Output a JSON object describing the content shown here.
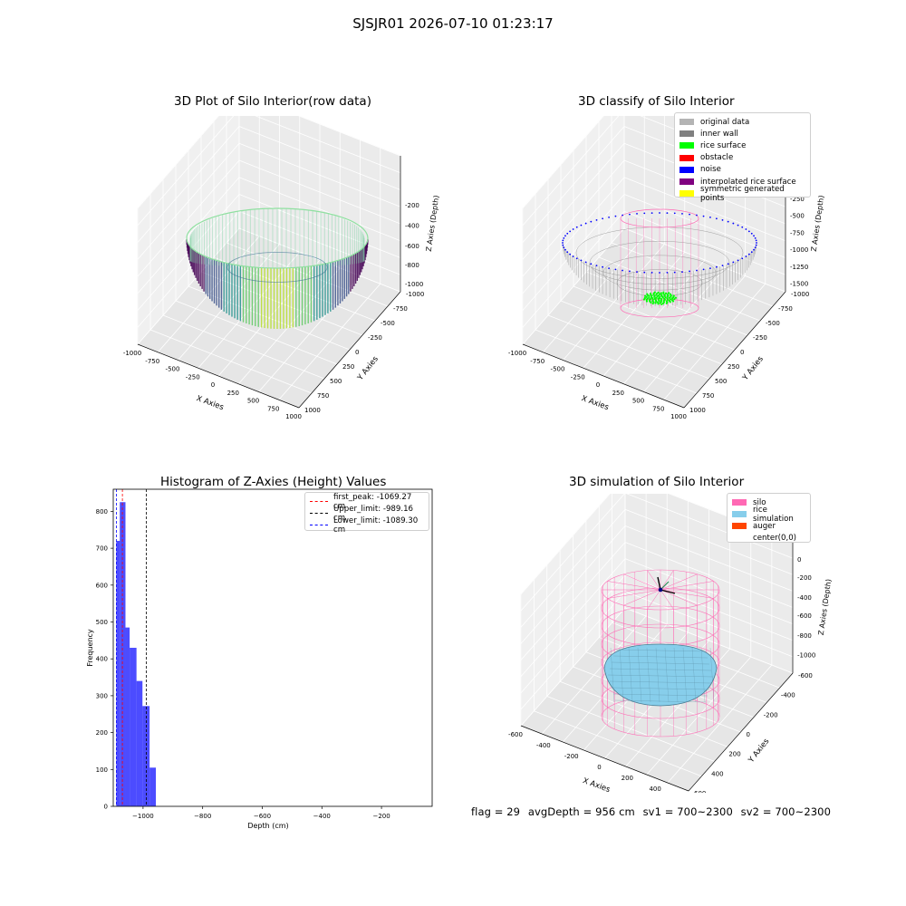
{
  "suptitle": "SJSJR01 2026-07-10 01:23:17",
  "panels": {
    "raw": {
      "title": "3D Plot of Silo Interior(row data)",
      "xlabel": "X Axies",
      "ylabel": "Y Axies",
      "zlabel": "Z Axies (Depth)",
      "xticks": [
        "-1000",
        "-750",
        "-500",
        "-250",
        "0",
        "250",
        "500",
        "750",
        "1000"
      ],
      "yticks": [
        "-1000",
        "-750",
        "-500",
        "-250",
        "0",
        "250",
        "500",
        "750",
        "1000"
      ],
      "zticks": [
        "-200",
        "-400",
        "-600",
        "-800",
        "-1000"
      ]
    },
    "classify": {
      "title": "3D classify of Silo Interior",
      "xlabel": "X Axies",
      "ylabel": "Y Axies",
      "zlabel": "Z Axies (Depth)",
      "xticks": [
        "-1000",
        "-750",
        "-500",
        "-250",
        "0",
        "250",
        "500",
        "750",
        "1000"
      ],
      "yticks": [
        "-1000",
        "-750",
        "-500",
        "-250",
        "0",
        "250",
        "500",
        "750",
        "1000"
      ],
      "zticks": [
        "250",
        "0",
        "-250",
        "-500",
        "-750",
        "-1000",
        "-1250",
        "-1500"
      ],
      "legend": [
        {
          "label": "original data",
          "color": "#b4b4b4"
        },
        {
          "label": "inner wall",
          "color": "#808080"
        },
        {
          "label": "rice surface",
          "color": "#00ff00"
        },
        {
          "label": "obstacle",
          "color": "#ff0000"
        },
        {
          "label": "noise",
          "color": "#0000ff"
        },
        {
          "label": "interpolated rice surface",
          "color": "#800080"
        },
        {
          "label": "symmetric generated points",
          "color": "#ffff00"
        }
      ]
    },
    "simulation": {
      "title": "3D simulation of Silo Interior",
      "xlabel": "X Axies",
      "ylabel": "Y Axies",
      "zlabel": "Z Axies (Depth)",
      "xticks": [
        "-600",
        "-400",
        "-200",
        "0",
        "200",
        "400",
        "600"
      ],
      "yticks": [
        "-600",
        "-400",
        "-200",
        "0",
        "200",
        "400",
        "600"
      ],
      "zticks": [
        "0",
        "-200",
        "-400",
        "-600",
        "-800",
        "-1000"
      ],
      "legend": [
        {
          "label": "silo",
          "color": "#ff69b4"
        },
        {
          "label": "rice simulation",
          "color": "#87ceeb"
        },
        {
          "label": "auger",
          "color": "#ff4500"
        },
        {
          "label": "center(0,0)",
          "color": "#ffffff"
        }
      ]
    }
  },
  "status": {
    "flag": "flag = 29",
    "avg": "avgDepth = 956 cm",
    "sv1": "sv1 = 700~2300",
    "sv2": "sv2 = 700~2300"
  },
  "chart_data": {
    "type": "bar",
    "title": "Histogram of Z-Axies (Height) Values",
    "xlabel": "Depth (cm)",
    "ylabel": "Frequency",
    "xlim": [
      -1100,
      -30
    ],
    "ylim": [
      0,
      860
    ],
    "xticks": [
      -1000,
      -800,
      -600,
      -400,
      -200
    ],
    "yticks": [
      0,
      100,
      200,
      300,
      400,
      500,
      600,
      700,
      800
    ],
    "bar_color": "#0000ff",
    "bins": [
      {
        "x0": -1090,
        "x1": -1078,
        "count": 720
      },
      {
        "x0": -1078,
        "x1": -1059,
        "count": 825
      },
      {
        "x0": -1059,
        "x1": -1045,
        "count": 485
      },
      {
        "x0": -1045,
        "x1": -1022,
        "count": 430
      },
      {
        "x0": -1022,
        "x1": -1002,
        "count": 340
      },
      {
        "x0": -1002,
        "x1": -978,
        "count": 272
      },
      {
        "x0": -978,
        "x1": -957,
        "count": 105
      }
    ],
    "vlines": [
      {
        "label": "first_peak: -1069.27 cm",
        "x": -1069.27,
        "color": "#ff0000"
      },
      {
        "label": "Upper_limit: -989.16 cm",
        "x": -989.16,
        "color": "#000000"
      },
      {
        "label": "Lower_limit: -1089.30 cm",
        "x": -1089.3,
        "color": "#0000ff"
      }
    ]
  }
}
